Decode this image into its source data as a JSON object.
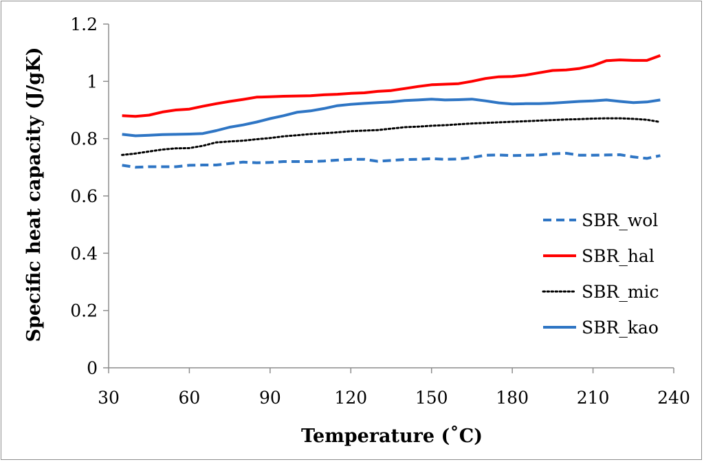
{
  "chart_data": {
    "type": "line",
    "title": "",
    "xlabel": "Temperature (˚C)",
    "ylabel": "Specific heat capacity (J/gK)",
    "xlim": [
      30,
      240
    ],
    "ylim": [
      0,
      1.2
    ],
    "xticks": [
      "30",
      "60",
      "90",
      "120",
      "150",
      "180",
      "210",
      "240"
    ],
    "yticks": [
      "0",
      "0.2",
      "0.4",
      "0.6",
      "0.8",
      "1",
      "1.2"
    ],
    "grid": false,
    "legend_position": "right",
    "x": [
      35,
      40,
      45,
      50,
      55,
      60,
      65,
      70,
      75,
      80,
      85,
      90,
      95,
      100,
      105,
      110,
      115,
      120,
      125,
      130,
      135,
      140,
      145,
      150,
      155,
      160,
      165,
      170,
      175,
      180,
      185,
      190,
      195,
      200,
      205,
      210,
      215,
      220,
      225,
      230,
      235
    ],
    "series": [
      {
        "name": "SBR_wol",
        "color": "#2e75c4",
        "style": "dashed",
        "values": [
          0.707,
          0.7,
          0.702,
          0.702,
          0.702,
          0.707,
          0.708,
          0.708,
          0.713,
          0.718,
          0.716,
          0.717,
          0.72,
          0.72,
          0.72,
          0.722,
          0.725,
          0.728,
          0.728,
          0.721,
          0.724,
          0.727,
          0.728,
          0.73,
          0.728,
          0.729,
          0.734,
          0.742,
          0.743,
          0.741,
          0.742,
          0.743,
          0.747,
          0.749,
          0.742,
          0.742,
          0.743,
          0.744,
          0.736,
          0.731,
          0.741
        ]
      },
      {
        "name": "SBR_hal",
        "color": "#ff0000",
        "style": "solid",
        "values": [
          0.88,
          0.878,
          0.882,
          0.893,
          0.9,
          0.903,
          0.913,
          0.922,
          0.93,
          0.937,
          0.945,
          0.946,
          0.948,
          0.949,
          0.95,
          0.953,
          0.955,
          0.958,
          0.96,
          0.965,
          0.968,
          0.975,
          0.982,
          0.988,
          0.99,
          0.992,
          1.0,
          1.01,
          1.016,
          1.017,
          1.022,
          1.03,
          1.038,
          1.04,
          1.045,
          1.055,
          1.072,
          1.075,
          1.073,
          1.073,
          1.09
        ]
      },
      {
        "name": "SBR_mic",
        "color": "#000000",
        "style": "dotted",
        "values": [
          0.743,
          0.748,
          0.755,
          0.762,
          0.766,
          0.767,
          0.775,
          0.787,
          0.79,
          0.793,
          0.798,
          0.802,
          0.808,
          0.812,
          0.816,
          0.819,
          0.822,
          0.826,
          0.828,
          0.83,
          0.835,
          0.84,
          0.842,
          0.845,
          0.847,
          0.85,
          0.853,
          0.855,
          0.857,
          0.859,
          0.861,
          0.863,
          0.865,
          0.867,
          0.868,
          0.87,
          0.871,
          0.871,
          0.869,
          0.866,
          0.858
        ]
      },
      {
        "name": "SBR_kao",
        "color": "#2e75c4",
        "style": "solid",
        "values": [
          0.815,
          0.81,
          0.812,
          0.814,
          0.815,
          0.816,
          0.818,
          0.828,
          0.84,
          0.848,
          0.858,
          0.87,
          0.88,
          0.892,
          0.897,
          0.905,
          0.915,
          0.92,
          0.923,
          0.926,
          0.928,
          0.933,
          0.935,
          0.938,
          0.935,
          0.936,
          0.938,
          0.932,
          0.925,
          0.921,
          0.922,
          0.922,
          0.924,
          0.927,
          0.93,
          0.932,
          0.935,
          0.93,
          0.926,
          0.928,
          0.935
        ]
      }
    ]
  }
}
